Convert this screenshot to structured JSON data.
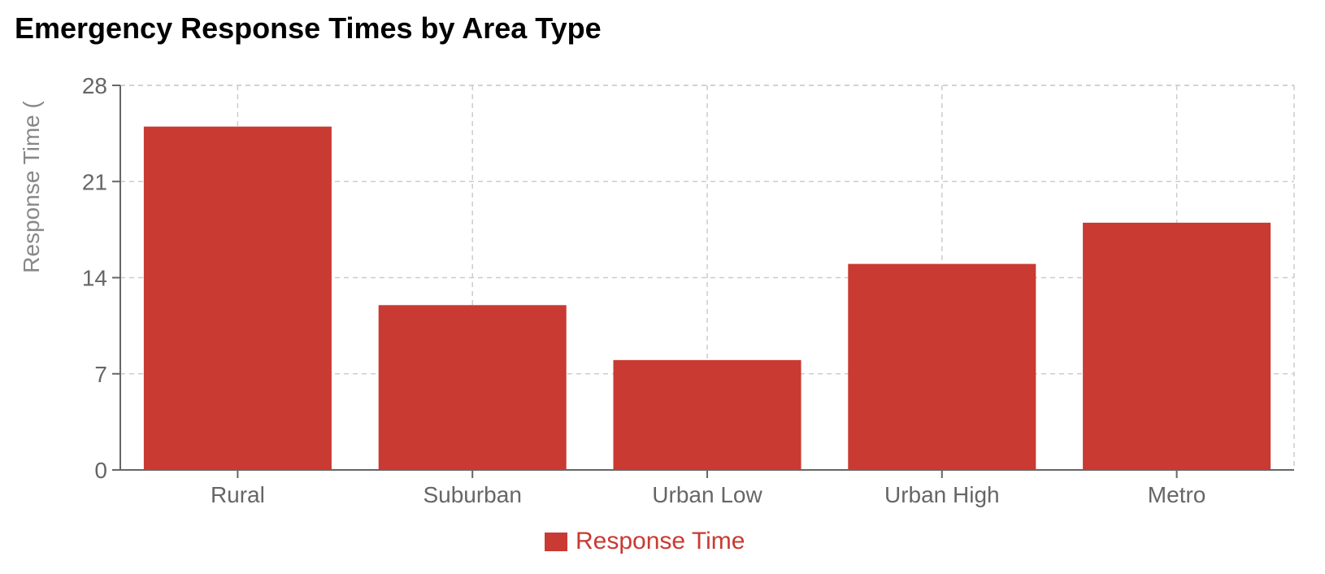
{
  "chart_data": {
    "type": "bar",
    "title": "Emergency Response Times by Area Type",
    "ylabel": "Response Time (",
    "xlabel": "",
    "categories": [
      "Rural",
      "Suburban",
      "Urban Low",
      "Urban High",
      "Metro"
    ],
    "series": [
      {
        "name": "Response Time",
        "values": [
          25,
          12,
          8,
          15,
          18
        ],
        "color": "#c93a32"
      }
    ],
    "ylim": [
      0,
      28
    ],
    "yticks": [
      "0",
      "7",
      "14",
      "21",
      "28"
    ],
    "grid": true,
    "legend_position": "bottom"
  }
}
